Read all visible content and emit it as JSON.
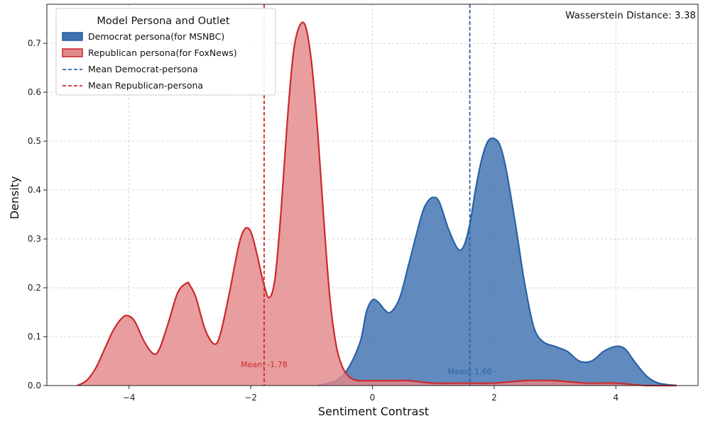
{
  "chart_data": {
    "type": "area",
    "title": "",
    "xlabel": "Sentiment Contrast",
    "ylabel": "Density",
    "xlim": [
      -5.35,
      5.35
    ],
    "ylim": [
      0,
      0.78
    ],
    "x_ticks": [
      -4,
      -2,
      0,
      2,
      4
    ],
    "x_tick_labels": [
      "−4",
      "−2",
      "0",
      "2",
      "4"
    ],
    "y_ticks": [
      0.0,
      0.1,
      0.2,
      0.3,
      0.4,
      0.5,
      0.6,
      0.7
    ],
    "y_tick_labels": [
      "0.0",
      "0.1",
      "0.2",
      "0.3",
      "0.4",
      "0.5",
      "0.6",
      "0.7"
    ],
    "grid": true,
    "legend_title": "Model Persona and Outlet",
    "legend_position": "top-left",
    "annotation": "Wasserstein Distance: 3.38",
    "series": [
      {
        "name": "Democrat persona(for MSNBC)",
        "color": "#2a62a6",
        "fill": "#3e72b0",
        "x": [
          -0.9,
          -0.6,
          -0.4,
          -0.2,
          -0.1,
          0.0,
          0.1,
          0.2,
          0.3,
          0.45,
          0.6,
          0.8,
          0.9,
          1.0,
          1.1,
          1.25,
          1.4,
          1.5,
          1.6,
          1.7,
          1.8,
          1.9,
          2.0,
          2.1,
          2.2,
          2.35,
          2.5,
          2.65,
          2.8,
          3.0,
          3.2,
          3.4,
          3.6,
          3.8,
          4.0,
          4.15,
          4.3,
          4.5,
          4.7,
          5.0
        ],
        "y": [
          0.0,
          0.01,
          0.035,
          0.09,
          0.15,
          0.175,
          0.17,
          0.155,
          0.15,
          0.18,
          0.25,
          0.345,
          0.375,
          0.385,
          0.375,
          0.32,
          0.28,
          0.285,
          0.33,
          0.405,
          0.465,
          0.5,
          0.505,
          0.49,
          0.44,
          0.33,
          0.21,
          0.12,
          0.09,
          0.08,
          0.07,
          0.05,
          0.05,
          0.07,
          0.08,
          0.075,
          0.05,
          0.02,
          0.005,
          0.0
        ]
      },
      {
        "name": "Republican persona(for FoxNews)",
        "color": "#cc2a2a",
        "fill": "#e38889",
        "x": [
          -4.85,
          -4.7,
          -4.55,
          -4.4,
          -4.25,
          -4.1,
          -4.0,
          -3.9,
          -3.75,
          -3.6,
          -3.5,
          -3.35,
          -3.2,
          -3.05,
          -3.0,
          -2.9,
          -2.75,
          -2.6,
          -2.5,
          -2.35,
          -2.2,
          -2.1,
          -2.0,
          -1.9,
          -1.8,
          -1.7,
          -1.6,
          -1.5,
          -1.4,
          -1.3,
          -1.2,
          -1.1,
          -1.0,
          -0.9,
          -0.8,
          -0.7,
          -0.6,
          -0.5,
          -0.4,
          -0.3,
          -0.2,
          -0.1,
          0.0,
          0.3,
          0.6,
          1.0,
          1.5,
          2.0,
          2.5,
          3.0,
          3.5,
          4.0,
          4.5,
          5.0
        ],
        "y": [
          0.0,
          0.01,
          0.035,
          0.075,
          0.115,
          0.14,
          0.142,
          0.13,
          0.09,
          0.065,
          0.075,
          0.13,
          0.19,
          0.21,
          0.205,
          0.18,
          0.115,
          0.085,
          0.105,
          0.19,
          0.285,
          0.32,
          0.315,
          0.27,
          0.215,
          0.18,
          0.22,
          0.36,
          0.54,
          0.68,
          0.735,
          0.735,
          0.66,
          0.52,
          0.34,
          0.18,
          0.085,
          0.04,
          0.02,
          0.012,
          0.01,
          0.01,
          0.01,
          0.01,
          0.01,
          0.005,
          0.005,
          0.005,
          0.01,
          0.01,
          0.005,
          0.005,
          0.0,
          0.0
        ]
      }
    ],
    "mean_lines": [
      {
        "name": "Mean Democrat-persona",
        "value": 1.6,
        "color": "#2a62a6",
        "label": "Mean: 1.60"
      },
      {
        "name": "Mean Republican-persona",
        "value": -1.78,
        "color": "#cc2a2a",
        "label": "Mean: -1.78"
      }
    ]
  }
}
